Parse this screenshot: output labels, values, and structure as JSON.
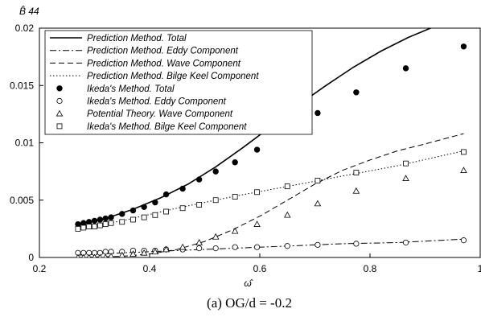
{
  "chart_data": {
    "type": "line",
    "xlabel": "ω̂",
    "ylabel": "B̂ 44",
    "xlim": [
      0.2,
      1.0
    ],
    "ylim": [
      0,
      0.02
    ],
    "x_ticks": [
      "0.2",
      "0.4",
      "0.6",
      "0.8",
      "1"
    ],
    "y_ticks": [
      "0",
      "0.005",
      "0.01",
      "0.015",
      "0.02"
    ],
    "grid": false,
    "legend_position": "top-left",
    "caption": "(a) OG/d = -0.2",
    "series": [
      {
        "name": "Prediction Method. Total",
        "style": "solid",
        "x": [
          0.27,
          0.32,
          0.37,
          0.42,
          0.47,
          0.52,
          0.57,
          0.62,
          0.67,
          0.72,
          0.77,
          0.82,
          0.87,
          0.92
        ],
        "y": [
          0.0029,
          0.0034,
          0.0042,
          0.0052,
          0.0064,
          0.0079,
          0.0096,
          0.0114,
          0.0133,
          0.015,
          0.0166,
          0.018,
          0.0192,
          0.0202
        ]
      },
      {
        "name": "Prediction Method. Eddy Component",
        "style": "dashdot",
        "x": [
          0.27,
          0.35,
          0.45,
          0.55,
          0.65,
          0.75,
          0.85,
          0.97
        ],
        "y": [
          0.0002,
          0.0004,
          0.0006,
          0.0008,
          0.001,
          0.0012,
          0.0013,
          0.0016
        ]
      },
      {
        "name": "Prediction Method. Wave Component",
        "style": "dashed",
        "x": [
          0.27,
          0.35,
          0.4,
          0.45,
          0.5,
          0.55,
          0.6,
          0.65,
          0.7,
          0.75,
          0.8,
          0.85,
          0.9,
          0.97
        ],
        "y": [
          0.0,
          0.0001,
          0.0003,
          0.0007,
          0.0014,
          0.0024,
          0.0036,
          0.005,
          0.0064,
          0.0076,
          0.0085,
          0.0093,
          0.0099,
          0.0108
        ]
      },
      {
        "name": "Prediction Method. Bilge Keel Component",
        "style": "dotted",
        "x": [
          0.27,
          0.35,
          0.45,
          0.55,
          0.65,
          0.75,
          0.85,
          0.97
        ],
        "y": [
          0.0025,
          0.0032,
          0.0043,
          0.0053,
          0.0062,
          0.0071,
          0.008,
          0.0093
        ]
      },
      {
        "name": "Ikeda's Method. Total",
        "marker": "filled-circle",
        "x": [
          0.27,
          0.28,
          0.29,
          0.3,
          0.31,
          0.32,
          0.33,
          0.35,
          0.37,
          0.39,
          0.41,
          0.43,
          0.46,
          0.49,
          0.52,
          0.555,
          0.595,
          0.705,
          0.775,
          0.865,
          0.97
        ],
        "y": [
          0.0029,
          0.003,
          0.0031,
          0.0032,
          0.0033,
          0.0034,
          0.0035,
          0.0038,
          0.0041,
          0.0044,
          0.0048,
          0.0055,
          0.006,
          0.0068,
          0.0075,
          0.0083,
          0.0094,
          0.0126,
          0.0144,
          0.0165,
          0.0184
        ]
      },
      {
        "name": "Ikeda's Method. Eddy Component",
        "marker": "open-circle",
        "x": [
          0.27,
          0.28,
          0.29,
          0.3,
          0.31,
          0.32,
          0.33,
          0.35,
          0.37,
          0.39,
          0.41,
          0.43,
          0.46,
          0.49,
          0.52,
          0.555,
          0.595,
          0.65,
          0.705,
          0.775,
          0.865,
          0.97
        ],
        "y": [
          0.0004,
          0.0004,
          0.0004,
          0.0004,
          0.0004,
          0.0005,
          0.0005,
          0.0005,
          0.0006,
          0.0006,
          0.0006,
          0.0007,
          0.0007,
          0.0008,
          0.0008,
          0.0009,
          0.0009,
          0.001,
          0.0011,
          0.0012,
          0.0013,
          0.0015
        ]
      },
      {
        "name": "Potential Theory. Wave Component",
        "marker": "triangle",
        "x": [
          0.27,
          0.28,
          0.29,
          0.3,
          0.31,
          0.32,
          0.33,
          0.35,
          0.37,
          0.39,
          0.41,
          0.43,
          0.46,
          0.49,
          0.52,
          0.555,
          0.595,
          0.65,
          0.705,
          0.775,
          0.865,
          0.97
        ],
        "y": [
          0.0,
          0.0,
          0.0,
          0.0,
          0.0,
          0.0,
          0.0001,
          0.0002,
          0.0003,
          0.0004,
          0.0005,
          0.0007,
          0.0009,
          0.0013,
          0.0018,
          0.0023,
          0.0029,
          0.0037,
          0.0047,
          0.0058,
          0.0069,
          0.0076
        ]
      },
      {
        "name": "Ikeda's Method. Bilge Keel Component",
        "marker": "open-square",
        "x": [
          0.27,
          0.28,
          0.29,
          0.3,
          0.31,
          0.32,
          0.33,
          0.35,
          0.37,
          0.39,
          0.41,
          0.43,
          0.46,
          0.49,
          0.52,
          0.555,
          0.595,
          0.65,
          0.705,
          0.775,
          0.865,
          0.97
        ],
        "y": [
          0.0025,
          0.0026,
          0.0027,
          0.0027,
          0.0028,
          0.0029,
          0.003,
          0.0031,
          0.0033,
          0.0035,
          0.0037,
          0.004,
          0.0043,
          0.0046,
          0.005,
          0.0053,
          0.0057,
          0.0062,
          0.0067,
          0.0074,
          0.0082,
          0.0092
        ]
      }
    ]
  }
}
